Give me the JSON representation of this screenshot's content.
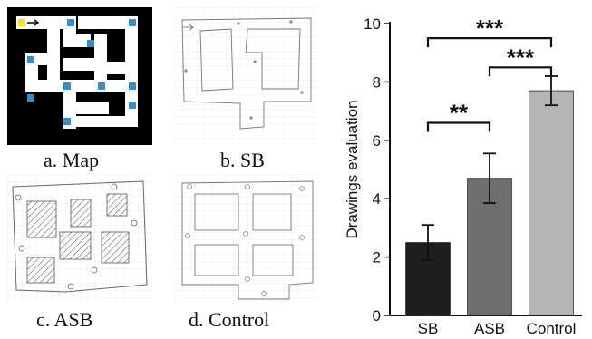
{
  "panels": [
    {
      "id": "a",
      "caption": "a. Map"
    },
    {
      "id": "b",
      "caption": "b. SB"
    },
    {
      "id": "c",
      "caption": "c. ASB"
    },
    {
      "id": "d",
      "caption": "d. Control"
    }
  ],
  "map": {
    "background_color": "#000000",
    "path_color": "#ffffff",
    "marker_color": "#2e8fd6",
    "start_color": "#f2e21b"
  },
  "chart_data": {
    "type": "bar",
    "ylabel": "Drawings evaluation",
    "ylim": [
      0,
      10
    ],
    "yticks": [
      0,
      2,
      4,
      6,
      8,
      10
    ],
    "categories": [
      "SB",
      "ASB",
      "Control"
    ],
    "values": [
      2.5,
      4.7,
      7.7
    ],
    "errors": [
      0.6,
      0.85,
      0.5
    ],
    "colors": [
      "#1e1e1e",
      "#6e6e6e",
      "#b4b4b4"
    ],
    "significance": [
      {
        "from": "SB",
        "to": "Control",
        "label": "***"
      },
      {
        "from": "ASB",
        "to": "Control",
        "label": "***"
      },
      {
        "from": "SB",
        "to": "ASB",
        "label": "**"
      }
    ]
  }
}
